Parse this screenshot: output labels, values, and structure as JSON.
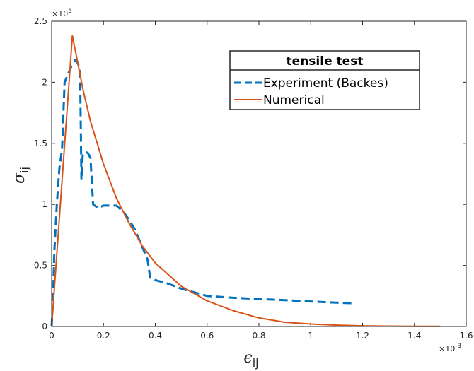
{
  "chart_data": {
    "type": "line",
    "xlabel": {
      "symbol": "ϵ",
      "sub": "ij"
    },
    "ylabel": {
      "symbol": "σ",
      "sub": "ij"
    },
    "xlim": [
      0,
      0.0016
    ],
    "ylim": [
      0,
      250000
    ],
    "x_ticks": [
      "0",
      "0.2",
      "0.4",
      "0.6",
      "0.8",
      "1",
      "1.2",
      "1.4",
      "1.6"
    ],
    "y_ticks": [
      "0",
      "0.5",
      "1",
      "1.5",
      "2",
      "2.5"
    ],
    "x_exponent": {
      "base": "×10",
      "power": "-3"
    },
    "y_exponent": {
      "base": "×10",
      "power": "5"
    },
    "grid": false,
    "legend": {
      "title": "tensile test",
      "placement": "top-right",
      "entries": [
        "Experiment (Backes)",
        "Numerical"
      ]
    },
    "series": [
      {
        "name": "Experiment (Backes)",
        "color": "#0072BD",
        "style": "dashed",
        "x": [
          0,
          5e-06,
          1e-05,
          2e-05,
          3e-05,
          4e-05,
          5e-05,
          6e-05,
          7e-05,
          8e-05,
          9e-05,
          0.0001,
          0.000105,
          0.00011,
          0.000115,
          0.00012,
          0.00013,
          0.00014,
          0.00015,
          0.00016,
          0.00018,
          0.0002,
          0.00022,
          0.00025,
          0.00028,
          0.0003,
          0.00032,
          0.00034,
          0.00036,
          0.00037,
          0.00038,
          0.0004,
          0.00045,
          0.0005,
          0.00055,
          0.0006,
          0.0007,
          0.0008,
          0.0009,
          0.001,
          0.0011,
          0.00117
        ],
        "y": [
          0,
          20000,
          60000,
          100000,
          130000,
          145000,
          200000,
          205000,
          210000,
          215000,
          218000,
          216000,
          213000,
          205000,
          120000,
          140000,
          143000,
          142000,
          138000,
          100000,
          97000,
          99000,
          99000,
          99000,
          93000,
          87000,
          80000,
          70000,
          60000,
          55000,
          40000,
          38000,
          35000,
          31000,
          28000,
          25000,
          23500,
          22500,
          21500,
          20500,
          19500,
          19000
        ]
      },
      {
        "name": "Numerical",
        "color": "#D95319",
        "style": "solid",
        "x": [
          0,
          8e-05,
          0.0001,
          0.00012,
          0.00015,
          0.0002,
          0.00025,
          0.0003,
          0.00035,
          0.0004,
          0.0005,
          0.0006,
          0.0007,
          0.0008,
          0.0009,
          0.001,
          0.0011,
          0.0012,
          0.0013,
          0.0014,
          0.0015
        ],
        "y": [
          0,
          238000,
          217000,
          195000,
          168000,
          133000,
          105000,
          84000,
          66000,
          52000,
          33000,
          21000,
          13000,
          7000,
          3500,
          2000,
          1100,
          500,
          300,
          200,
          100
        ]
      }
    ]
  }
}
